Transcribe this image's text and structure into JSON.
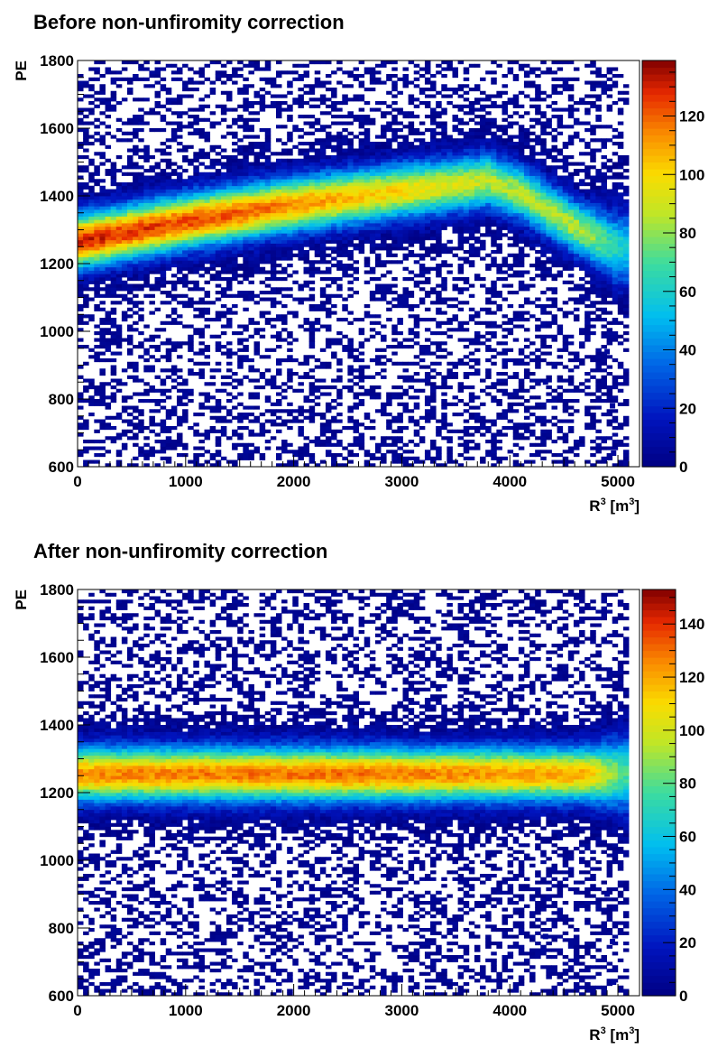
{
  "chart_data": [
    {
      "type": "heatmap",
      "title": "Before non-unfiromity correction",
      "xlabel": "R",
      "xlabel_sup": "3",
      "xlabel_unit_open": "[m",
      "xlabel_unit_sup": "3",
      "xlabel_unit_close": "]",
      "ylabel": "PE",
      "xlim": [
        0,
        5200
      ],
      "ylim": [
        600,
        1800
      ],
      "xticks": [
        "0",
        "1000",
        "2000",
        "3000",
        "4000",
        "5000"
      ],
      "yticks": [
        "600",
        "800",
        "1000",
        "1200",
        "1400",
        "1600",
        "1800"
      ],
      "zlim": [
        0,
        139
      ],
      "zticks": [
        "0",
        "20",
        "40",
        "60",
        "80",
        "100",
        "120"
      ],
      "colormap": "rainbow",
      "band_center": [
        {
          "x": 0,
          "y": 1265
        },
        {
          "x": 1000,
          "y": 1325
        },
        {
          "x": 2000,
          "y": 1375
        },
        {
          "x": 3000,
          "y": 1415
        },
        {
          "x": 3800,
          "y": 1445
        },
        {
          "x": 4100,
          "y": 1410
        },
        {
          "x": 4600,
          "y": 1310
        },
        {
          "x": 5000,
          "y": 1245
        }
      ],
      "band_peak_counts": [
        {
          "x": 0,
          "z": 130
        },
        {
          "x": 1500,
          "z": 120
        },
        {
          "x": 3000,
          "z": 100
        },
        {
          "x": 4000,
          "z": 85
        },
        {
          "x": 5000,
          "z": 85
        }
      ],
      "outliers": [
        {
          "x": 4330,
          "y": 850
        },
        {
          "x": 4900,
          "y": 940
        },
        {
          "x": 4950,
          "y": 780
        },
        {
          "x": 4960,
          "y": 640
        }
      ]
    },
    {
      "type": "heatmap",
      "title": "After non-unfiromity correction",
      "xlabel": "R",
      "xlabel_sup": "3",
      "xlabel_unit_open": "[m",
      "xlabel_unit_sup": "3",
      "xlabel_unit_close": "]",
      "ylabel": "PE",
      "xlim": [
        0,
        5200
      ],
      "ylim": [
        600,
        1800
      ],
      "xticks": [
        "0",
        "1000",
        "2000",
        "3000",
        "4000",
        "5000"
      ],
      "yticks": [
        "600",
        "800",
        "1000",
        "1200",
        "1400",
        "1600",
        "1800"
      ],
      "zlim": [
        0,
        153
      ],
      "zticks": [
        "0",
        "20",
        "40",
        "60",
        "80",
        "100",
        "120",
        "140"
      ],
      "colormap": "rainbow",
      "band_center": [
        {
          "x": 0,
          "y": 1255
        },
        {
          "x": 5000,
          "y": 1255
        }
      ],
      "band_peak_counts": [
        {
          "x": 0,
          "z": 125
        },
        {
          "x": 2500,
          "z": 130
        },
        {
          "x": 4500,
          "z": 120
        },
        {
          "x": 5000,
          "z": 115
        }
      ],
      "outliers": [
        {
          "x": 4330,
          "y": 775
        },
        {
          "x": 4900,
          "y": 900
        },
        {
          "x": 4950,
          "y": 760
        },
        {
          "x": 4960,
          "y": 640
        }
      ]
    }
  ]
}
